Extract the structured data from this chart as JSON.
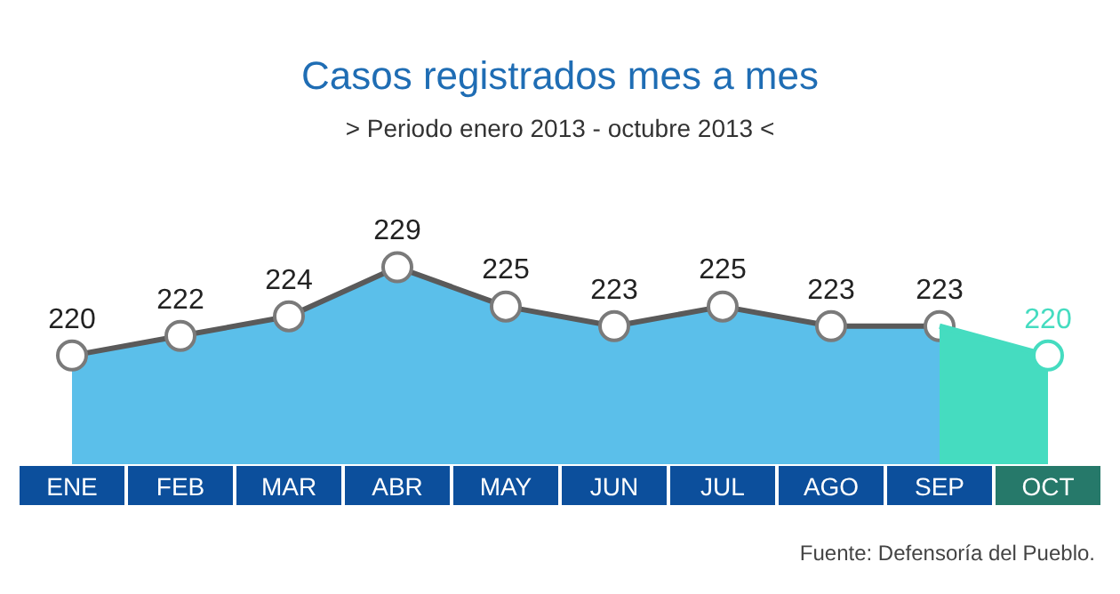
{
  "chart_data": {
    "type": "area",
    "title": "Casos registrados mes a mes",
    "subtitle": "> Periodo enero 2013 - octubre 2013 <",
    "categories": [
      "ENE",
      "FEB",
      "MAR",
      "ABR",
      "MAY",
      "JUN",
      "JUL",
      "AGO",
      "SEP",
      "OCT"
    ],
    "series": [
      {
        "color": "#5bbfea",
        "values": [
          220,
          222,
          224,
          229,
          225,
          223,
          225,
          223,
          223,
          null
        ],
        "value_labels": [
          "220",
          "222",
          "224",
          "229",
          "225",
          "223",
          "225",
          "223",
          "223",
          null
        ]
      },
      {
        "color": "#45dcc0",
        "values": [
          null,
          null,
          null,
          null,
          null,
          null,
          null,
          null,
          223,
          220
        ],
        "value_labels": [
          null,
          null,
          null,
          null,
          null,
          null,
          null,
          null,
          null,
          "220"
        ]
      }
    ],
    "grid": false,
    "legend": false,
    "marker": "circle",
    "annotations": [
      "Fuente: Defensoría del Pueblo."
    ]
  }
}
